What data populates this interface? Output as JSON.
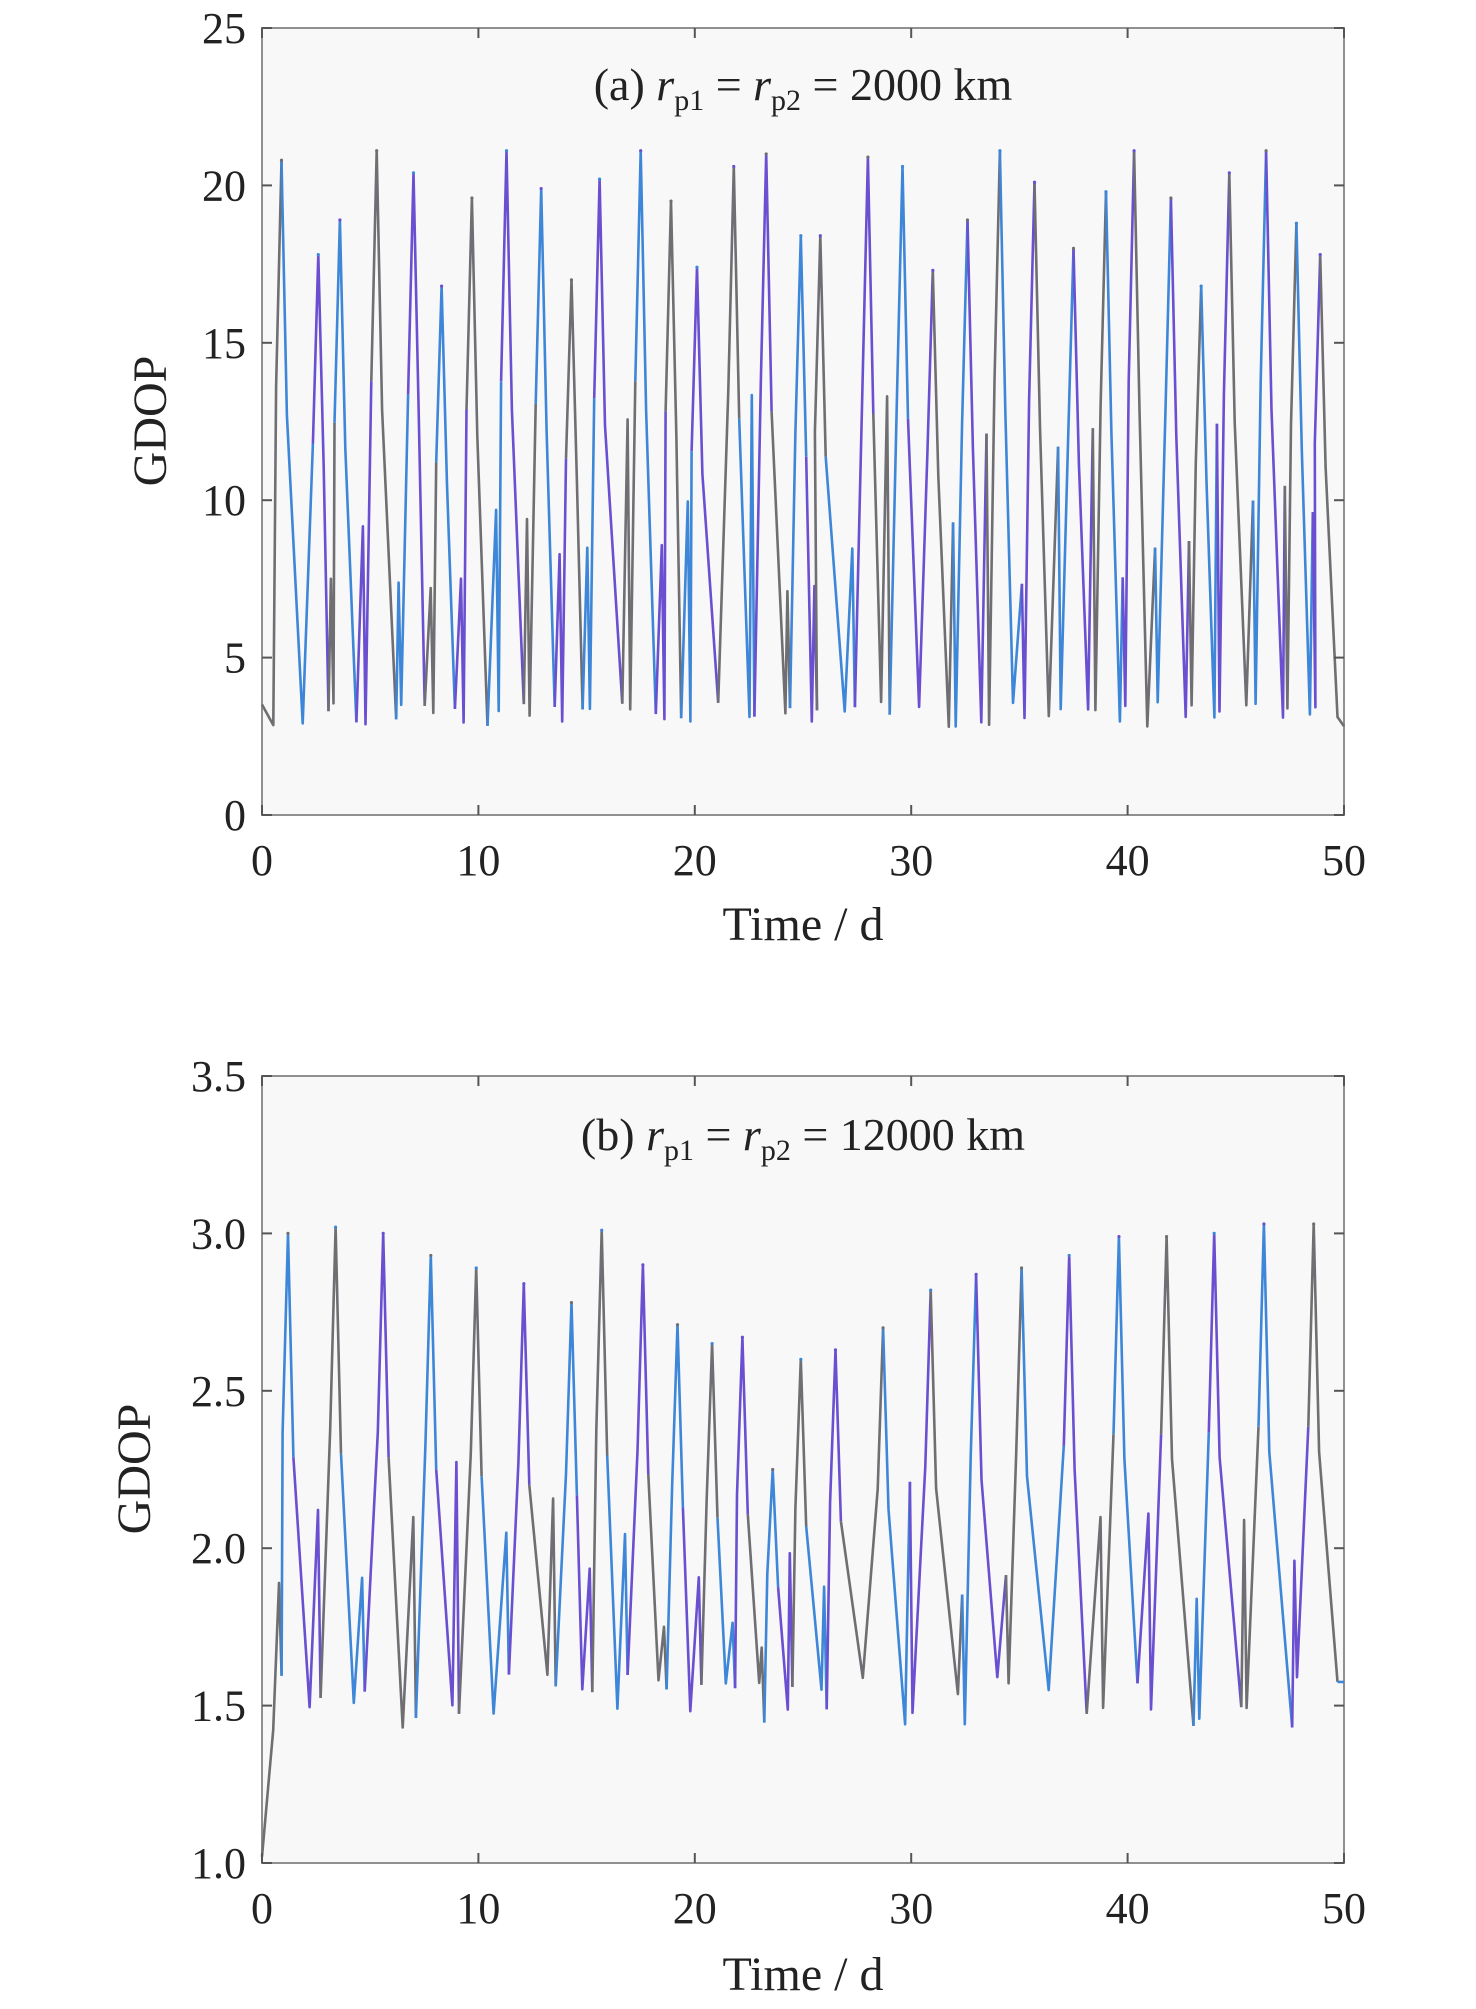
{
  "chart_data": [
    {
      "type": "line",
      "panel": "a",
      "annotation": {
        "prefix": "(a) ",
        "var": "r",
        "sub1": "p1",
        "sub2": "p2",
        "eq": " = ",
        "value": "2000 km"
      },
      "xlabel": "Time / d",
      "ylabel": "GDOP",
      "xlim": [
        0,
        50
      ],
      "ylim": [
        0,
        25
      ],
      "xticks": [
        "0",
        "10",
        "20",
        "30",
        "40",
        "50"
      ],
      "yticks": [
        "0",
        "5",
        "10",
        "15",
        "20",
        "25"
      ],
      "grid": false,
      "series_colors": [
        "#6f6f73",
        "#3d86d8",
        "#6a4fd0"
      ],
      "peaks": {
        "x": [
          0.9,
          2.6,
          3.6,
          5.3,
          7.0,
          8.3,
          9.7,
          11.3,
          12.9,
          14.3,
          15.6,
          17.5,
          18.9,
          20.1,
          21.8,
          23.3,
          24.9,
          25.8,
          28.0,
          29.6,
          31.0,
          32.6,
          34.1,
          35.7,
          37.5,
          39.0,
          40.3,
          42.0,
          43.4,
          44.7,
          46.4,
          47.8,
          48.9
        ],
        "y": [
          20.8,
          17.8,
          18.9,
          21.1,
          20.4,
          16.8,
          19.6,
          21.1,
          19.9,
          17.0,
          20.2,
          21.1,
          19.5,
          17.4,
          20.6,
          21.0,
          18.4,
          18.4,
          20.9,
          20.6,
          17.3,
          18.9,
          21.1,
          20.1,
          18.0,
          19.8,
          21.1,
          19.6,
          16.8,
          20.4,
          21.1,
          18.8,
          17.8
        ]
      },
      "troughs_min": 2.8,
      "troughs_max": 3.6
    },
    {
      "type": "line",
      "panel": "b",
      "annotation": {
        "prefix": "(b) ",
        "var": "r",
        "sub1": "p1",
        "sub2": "p2",
        "eq": " = ",
        "value": "12000 km"
      },
      "xlabel": "Time / d",
      "ylabel": "GDOP",
      "xlim": [
        0,
        50
      ],
      "ylim": [
        1.0,
        3.5
      ],
      "xticks": [
        "0",
        "10",
        "20",
        "30",
        "40",
        "50"
      ],
      "yticks": [
        "1.0",
        "1.5",
        "2.0",
        "2.5",
        "3.0",
        "3.5"
      ],
      "grid": false,
      "series_colors": [
        "#6f6f73",
        "#3d86d8",
        "#6a4fd0"
      ],
      "start_value": 1.02,
      "peaks": {
        "x": [
          1.2,
          3.4,
          5.6,
          7.8,
          9.9,
          12.1,
          14.3,
          15.7,
          17.6,
          19.2,
          20.8,
          22.2,
          23.6,
          24.9,
          26.5,
          28.7,
          30.9,
          33.0,
          35.1,
          37.3,
          39.6,
          41.8,
          44.0,
          46.3,
          48.6
        ],
        "y": [
          3.0,
          3.02,
          3.0,
          2.93,
          2.89,
          2.84,
          2.78,
          3.01,
          2.9,
          2.71,
          2.65,
          2.67,
          2.25,
          2.6,
          2.63,
          2.7,
          2.82,
          2.87,
          2.89,
          2.93,
          2.99,
          2.99,
          3.0,
          3.03,
          3.03
        ]
      },
      "troughs_min": 1.42,
      "troughs_max": 1.6
    }
  ]
}
